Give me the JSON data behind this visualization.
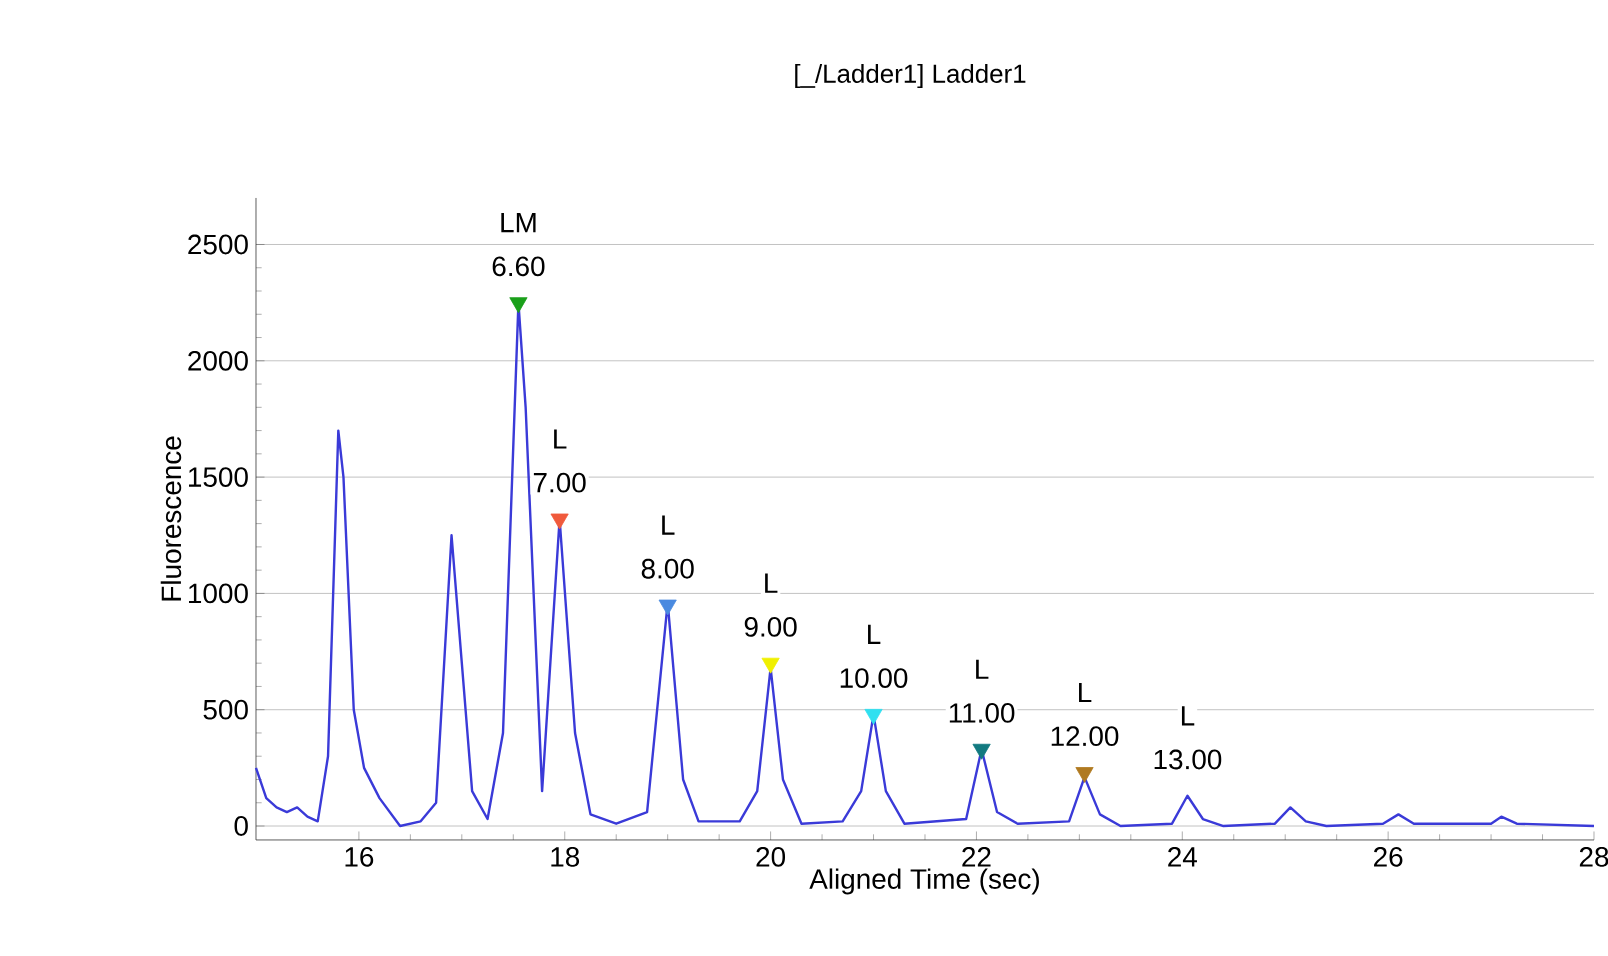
{
  "chart_data": {
    "type": "line",
    "title": "[_/Ladder1] Ladder1",
    "xlabel": "Aligned Time (sec)",
    "ylabel": "Fluorescence",
    "xlim": [
      15,
      28
    ],
    "ylim": [
      -60,
      2700
    ],
    "xticks": [
      16,
      18,
      20,
      22,
      24,
      26,
      28
    ],
    "yticks": [
      0,
      500,
      1000,
      1500,
      2000,
      2500
    ],
    "grid": "y",
    "marker": "none",
    "line_style": "solid",
    "series": [
      {
        "color": "#3a3ad8",
        "x": [
          15.0,
          15.1,
          15.2,
          15.3,
          15.4,
          15.5,
          15.6,
          15.7,
          15.8,
          15.85,
          15.95,
          16.05,
          16.2,
          16.4,
          16.6,
          16.75,
          16.9,
          17.0,
          17.1,
          17.25,
          17.4,
          17.55,
          17.62,
          17.78,
          17.95,
          18.1,
          18.25,
          18.5,
          18.8,
          19.0,
          19.15,
          19.3,
          19.7,
          19.87,
          20.0,
          20.12,
          20.3,
          20.7,
          20.88,
          21.0,
          21.12,
          21.3,
          21.9,
          22.05,
          22.2,
          22.4,
          22.9,
          23.05,
          23.2,
          23.4,
          23.9,
          24.05,
          24.2,
          24.4,
          24.9,
          25.05,
          25.2,
          25.4,
          25.95,
          26.1,
          26.25,
          27.0,
          27.1,
          27.25,
          28.0
        ],
        "values": [
          250,
          120,
          80,
          60,
          80,
          40,
          20,
          300,
          1700,
          1500,
          500,
          250,
          120,
          0,
          20,
          100,
          1250,
          700,
          150,
          30,
          400,
          2250,
          1800,
          150,
          1320,
          400,
          50,
          10,
          60,
          960,
          200,
          20,
          20,
          150,
          680,
          200,
          10,
          20,
          150,
          480,
          150,
          10,
          30,
          330,
          60,
          10,
          20,
          210,
          50,
          0,
          10,
          130,
          30,
          0,
          10,
          80,
          20,
          0,
          10,
          50,
          10,
          10,
          40,
          10,
          0
        ]
      },
      {
        "type": "scatter",
        "marker": "triangle",
        "x": [
          17.55,
          17.95,
          19.0,
          20.0,
          21.0,
          22.05,
          23.05
        ],
        "values": [
          2250,
          1320,
          950,
          700,
          480,
          330,
          230
        ],
        "colors": [
          "#1aa01a",
          "#f05a3c",
          "#4a8ae0",
          "#f0f000",
          "#30e0f0",
          "#127a80",
          "#b07a20"
        ]
      }
    ],
    "annotations": [
      {
        "text": "LM",
        "x": 17.55,
        "y": 2250
      },
      {
        "text": "6.60",
        "x": 17.55,
        "y": 2250
      },
      {
        "text": "L",
        "x": 17.95,
        "y": 1320
      },
      {
        "text": "7.00",
        "x": 17.95,
        "y": 1320
      },
      {
        "text": "L",
        "x": 19.0,
        "y": 950
      },
      {
        "text": "8.00",
        "x": 19.0,
        "y": 950
      },
      {
        "text": "L",
        "x": 20.0,
        "y": 700
      },
      {
        "text": "9.00",
        "x": 20.0,
        "y": 700
      },
      {
        "text": "L",
        "x": 21.0,
        "y": 480
      },
      {
        "text": "10.00",
        "x": 21.0,
        "y": 480
      },
      {
        "text": "L",
        "x": 22.05,
        "y": 330
      },
      {
        "text": "11.00",
        "x": 22.05,
        "y": 330
      },
      {
        "text": "L",
        "x": 23.05,
        "y": 230
      },
      {
        "text": "12.00",
        "x": 23.05,
        "y": 230
      },
      {
        "text": "L",
        "x": 24.05,
        "y": 130
      },
      {
        "text": "13.00",
        "x": 24.05,
        "y": 130
      }
    ]
  }
}
